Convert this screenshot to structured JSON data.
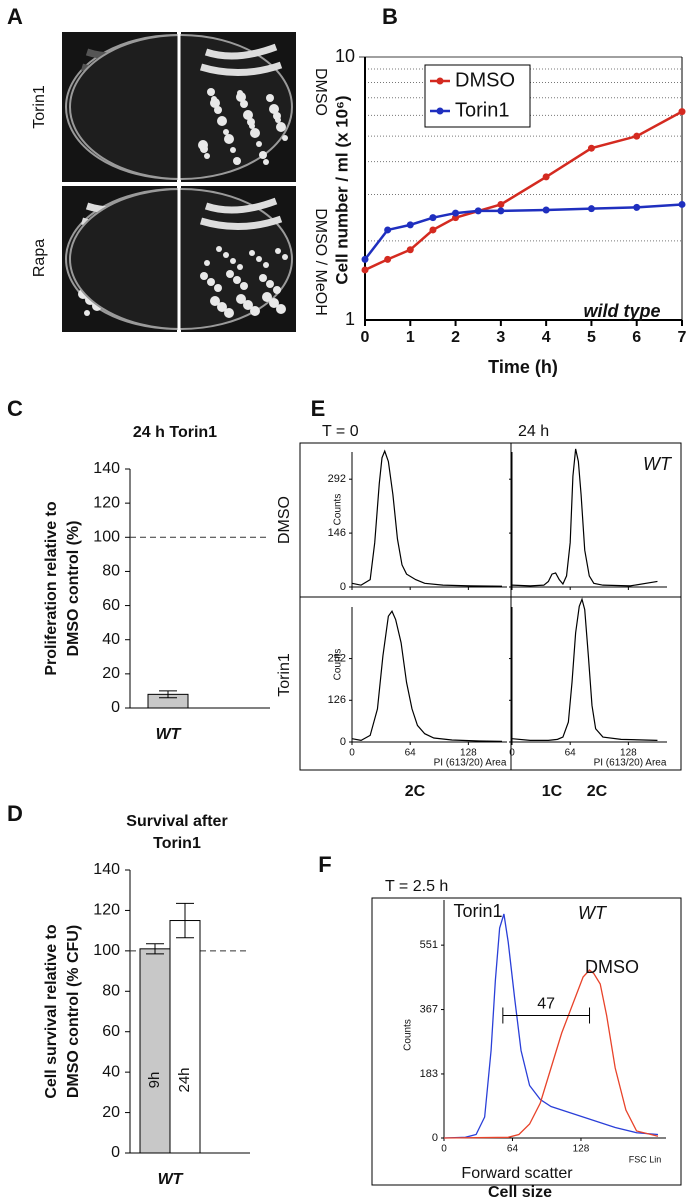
{
  "chart_data": [
    {
      "type": "photo",
      "panel": "A",
      "labels": [
        "Torin1",
        "DMSO",
        "Rapa",
        "DMSO / MeOH"
      ]
    },
    {
      "type": "line",
      "panel": "B",
      "ylabel": "Cell number / ml (x 10⁶)",
      "xlabel": "Time (h)",
      "annotation": "wild type",
      "xlim": [
        0,
        7
      ],
      "xticks": [
        0,
        1,
        2,
        3,
        4,
        5,
        6,
        7
      ],
      "ylim": [
        1,
        10
      ],
      "yticks": [
        1,
        10
      ],
      "log_scale": true,
      "grid_values": [
        2,
        3,
        4,
        5,
        6,
        7,
        8,
        9
      ],
      "legend": "upper left",
      "series": [
        {
          "name": "DMSO",
          "color": "#d42a20",
          "x": [
            0,
            0.5,
            1,
            1.5,
            2,
            3,
            4,
            5,
            6,
            7
          ],
          "values": [
            1.55,
            1.7,
            1.85,
            2.2,
            2.45,
            2.75,
            3.5,
            4.5,
            5.0,
            6.2
          ]
        },
        {
          "name": "Torin1",
          "color": "#1f2fbf",
          "x": [
            0,
            0.5,
            1,
            1.5,
            2,
            2.5,
            3,
            4,
            5,
            6,
            7
          ],
          "values": [
            1.7,
            2.2,
            2.3,
            2.45,
            2.55,
            2.6,
            2.6,
            2.62,
            2.65,
            2.68,
            2.75
          ]
        }
      ]
    },
    {
      "type": "bar",
      "panel": "C",
      "title": [
        "24 h Torin1"
      ],
      "ylabel": [
        "Proliferation relative to",
        "DMSO control (%)"
      ],
      "categories": [
        "WT"
      ],
      "ylim": [
        0,
        140
      ],
      "yticks": [
        0,
        20,
        40,
        60,
        80,
        100,
        120,
        140
      ],
      "hline": 100,
      "series": [
        {
          "color": "#c8c8c8",
          "values": [
            8
          ],
          "errors": [
            2
          ]
        }
      ]
    },
    {
      "type": "bar",
      "panel": "D",
      "title": [
        "Survival after",
        "Torin1"
      ],
      "ylabel": [
        "Cell survival relative to",
        "DMSO control (% CFU)"
      ],
      "categories": [
        "WT"
      ],
      "ylim": [
        0,
        140
      ],
      "yticks": [
        0,
        20,
        40,
        60,
        80,
        100,
        120,
        140
      ],
      "hline": 100,
      "series": [
        {
          "name": "9h",
          "color": "#c8c8c8",
          "values": [
            101
          ],
          "errors": [
            2.5
          ]
        },
        {
          "name": "24h",
          "color": "#ffffff",
          "values": [
            115
          ],
          "errors": [
            8.5
          ]
        }
      ]
    },
    {
      "type": "flow",
      "panel": "E",
      "columns": [
        "T = 0",
        "24 h"
      ],
      "rows": [
        "DMSO",
        "Torin1"
      ],
      "annotation": "WT",
      "ylabel": "Counts",
      "xlabel": "PI (613/20) Area",
      "xlim": [
        0,
        165
      ],
      "xticks": [
        0,
        64,
        128
      ],
      "peak_labels": [
        "2C",
        "1C",
        "2C"
      ],
      "plots": [
        {
          "ylim": [
            0,
            390
          ],
          "yticks": [
            0,
            146,
            292
          ],
          "x": [
            0,
            10,
            20,
            25,
            30,
            33,
            36,
            40,
            45,
            50,
            55,
            60,
            70,
            80,
            100,
            130,
            165
          ],
          "values": [
            10,
            5,
            20,
            120,
            280,
            350,
            368,
            340,
            250,
            130,
            60,
            35,
            20,
            10,
            5,
            3,
            2
          ]
        },
        {
          "ylim": [
            0,
            390
          ],
          "yticks": [
            0,
            146,
            292
          ],
          "x": [
            0,
            20,
            35,
            40,
            44,
            48,
            52,
            56,
            60,
            64,
            67,
            70,
            73,
            76,
            80,
            85,
            90,
            100,
            130,
            160
          ],
          "values": [
            5,
            3,
            5,
            15,
            35,
            38,
            20,
            8,
            30,
            120,
            300,
            374,
            340,
            250,
            100,
            30,
            10,
            5,
            3,
            15
          ]
        },
        {
          "ylim": [
            0,
            435
          ],
          "yticks": [
            0,
            126,
            252
          ],
          "x": [
            0,
            10,
            20,
            28,
            34,
            40,
            44,
            48,
            54,
            60,
            66,
            72,
            80,
            90,
            110,
            140,
            165
          ],
          "values": [
            10,
            5,
            20,
            100,
            260,
            380,
            395,
            370,
            300,
            180,
            100,
            50,
            25,
            12,
            6,
            3,
            2
          ]
        },
        {
          "ylim": [
            0,
            435
          ],
          "yticks": [
            0,
            126,
            252
          ],
          "x": [
            0,
            20,
            40,
            50,
            56,
            62,
            66,
            70,
            74,
            77,
            80,
            84,
            88,
            92,
            100,
            120,
            160
          ],
          "values": [
            10,
            5,
            5,
            8,
            15,
            60,
            180,
            330,
            410,
            431,
            400,
            260,
            110,
            40,
            15,
            8,
            5
          ]
        }
      ]
    },
    {
      "type": "flow",
      "panel": "F",
      "subtitle": "T = 2.5 h",
      "annotation": "WT",
      "ylabel": "Counts",
      "xlabel": "FSC Lin",
      "title": "Forward scatter",
      "caption": "Cell size",
      "xlim": [
        0,
        200
      ],
      "xticks": [
        0,
        64,
        128
      ],
      "ylim": [
        0,
        680
      ],
      "yticks": [
        0,
        183,
        367,
        551
      ],
      "series": [
        {
          "name": "Torin1",
          "color": "#2a3fd8",
          "x": [
            0,
            20,
            30,
            38,
            44,
            48,
            52,
            56,
            60,
            66,
            72,
            80,
            90,
            100,
            120,
            140,
            160,
            180,
            200
          ],
          "values": [
            0,
            2,
            10,
            60,
            250,
            450,
            600,
            640,
            560,
            400,
            250,
            150,
            110,
            90,
            70,
            50,
            30,
            15,
            10
          ]
        },
        {
          "name": "DMSO",
          "color": "#e8432a",
          "x": [
            0,
            60,
            70,
            80,
            90,
            100,
            110,
            120,
            130,
            136,
            140,
            146,
            152,
            160,
            170,
            180,
            200
          ],
          "values": [
            0,
            2,
            10,
            40,
            100,
            200,
            300,
            380,
            460,
            480,
            470,
            440,
            350,
            200,
            80,
            20,
            5
          ]
        }
      ],
      "bracket": {
        "x": [
          55,
          136
        ],
        "y": 350,
        "value": 47
      }
    }
  ]
}
